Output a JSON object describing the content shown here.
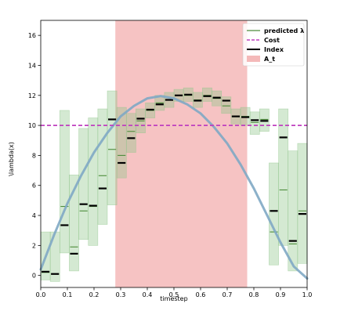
{
  "chart_data": {
    "type": "line",
    "xlabel": "timestep",
    "ylabel": "\\lambda(x)",
    "xlim": [
      0.0,
      1.0
    ],
    "ylim": [
      -0.8,
      17.0
    ],
    "xticks": [
      0.0,
      0.1,
      0.2,
      0.3,
      0.4,
      0.5,
      0.6,
      0.7,
      0.8,
      0.9,
      1.0
    ],
    "xtick_labels": [
      "0.0",
      "0.1",
      "0.2",
      "0.3",
      "0.4",
      "0.5",
      "0.6",
      "0.7",
      "0.8",
      "0.9",
      "1.0"
    ],
    "yticks": [
      0,
      2,
      4,
      6,
      8,
      10,
      12,
      14,
      16
    ],
    "ytick_labels": [
      "0",
      "2",
      "4",
      "6",
      "8",
      "10",
      "12",
      "14",
      "16"
    ],
    "grid": false,
    "legend_position": "top-right",
    "legend": [
      {
        "label": "predicted λ",
        "style": "line",
        "color": "#4c8c3a"
      },
      {
        "label": "Cost",
        "style": "dashed",
        "color": "#bf40bf"
      },
      {
        "label": "Index",
        "style": "thick-line",
        "color": "#000000"
      },
      {
        "label": "A_t",
        "style": "patch",
        "color": "#f4b9b9"
      }
    ],
    "cost": 10.0,
    "shaded_region": {
      "x_start": 0.28,
      "x_end": 0.775
    },
    "curve": {
      "description": "true lambda",
      "color": "#7fa8c4",
      "x": [
        0.0,
        0.05,
        0.1,
        0.15,
        0.2,
        0.25,
        0.3,
        0.35,
        0.4,
        0.45,
        0.5,
        0.55,
        0.6,
        0.65,
        0.7,
        0.75,
        0.8,
        0.85,
        0.9,
        0.95,
        1.0
      ],
      "y": [
        0.4,
        2.7,
        4.8,
        6.6,
        8.2,
        9.5,
        10.6,
        11.3,
        11.8,
        11.95,
        11.8,
        11.4,
        10.8,
        9.9,
        8.8,
        7.4,
        5.8,
        4.0,
        2.2,
        0.6,
        -0.2
      ]
    },
    "bins": [
      {
        "x0": 0.0,
        "x1": 0.0357,
        "predicted": 0.2,
        "index": 0.25,
        "low": -0.3,
        "high": 2.9
      },
      {
        "x0": 0.0357,
        "x1": 0.0714,
        "predicted": 0.1,
        "index": 0.1,
        "low": -0.4,
        "high": 2.9
      },
      {
        "x0": 0.0714,
        "x1": 0.1071,
        "predicted": 4.6,
        "index": 3.35,
        "low": 1.5,
        "high": 11.0
      },
      {
        "x0": 0.1071,
        "x1": 0.1429,
        "predicted": 1.9,
        "index": 1.45,
        "low": 0.3,
        "high": 6.7
      },
      {
        "x0": 0.1429,
        "x1": 0.1786,
        "predicted": 4.3,
        "index": 4.75,
        "low": 2.4,
        "high": 9.8
      },
      {
        "x0": 0.1786,
        "x1": 0.2143,
        "predicted": 4.6,
        "index": 4.65,
        "low": 2.0,
        "high": 10.5
      },
      {
        "x0": 0.2143,
        "x1": 0.25,
        "predicted": 6.65,
        "index": 5.8,
        "low": 3.4,
        "high": 11.1
      },
      {
        "x0": 0.25,
        "x1": 0.2857,
        "predicted": 8.4,
        "index": 10.4,
        "low": 4.7,
        "high": 12.3
      },
      {
        "x0": 0.2857,
        "x1": 0.3214,
        "predicted": 8.0,
        "index": 7.5,
        "low": 6.5,
        "high": 11.2
      },
      {
        "x0": 0.3214,
        "x1": 0.3571,
        "predicted": 9.6,
        "index": 9.15,
        "low": 8.2,
        "high": 10.8
      },
      {
        "x0": 0.3571,
        "x1": 0.3929,
        "predicted": 10.3,
        "index": 10.45,
        "low": 9.5,
        "high": 11.1
      },
      {
        "x0": 0.3929,
        "x1": 0.4286,
        "predicted": 11.0,
        "index": 11.05,
        "low": 10.5,
        "high": 11.5
      },
      {
        "x0": 0.4286,
        "x1": 0.4643,
        "predicted": 11.5,
        "index": 11.4,
        "low": 11.0,
        "high": 12.0
      },
      {
        "x0": 0.4643,
        "x1": 0.5,
        "predicted": 11.7,
        "index": 11.7,
        "low": 11.2,
        "high": 12.2
      },
      {
        "x0": 0.5,
        "x1": 0.5357,
        "predicted": 12.0,
        "index": 12.0,
        "low": 11.6,
        "high": 12.4
      },
      {
        "x0": 0.5357,
        "x1": 0.5714,
        "predicted": 12.0,
        "index": 12.05,
        "low": 11.6,
        "high": 12.5
      },
      {
        "x0": 0.5714,
        "x1": 0.6071,
        "predicted": 11.7,
        "index": 11.65,
        "low": 11.2,
        "high": 12.2
      },
      {
        "x0": 0.6071,
        "x1": 0.6429,
        "predicted": 12.0,
        "index": 11.95,
        "low": 11.6,
        "high": 12.5
      },
      {
        "x0": 0.6429,
        "x1": 0.6786,
        "predicted": 11.8,
        "index": 11.85,
        "low": 11.3,
        "high": 12.3
      },
      {
        "x0": 0.6786,
        "x1": 0.7143,
        "predicted": 11.3,
        "index": 11.65,
        "low": 10.8,
        "high": 11.9
      },
      {
        "x0": 0.7143,
        "x1": 0.75,
        "predicted": 10.6,
        "index": 10.6,
        "low": 10.1,
        "high": 11.1
      },
      {
        "x0": 0.75,
        "x1": 0.7857,
        "predicted": 10.6,
        "index": 10.55,
        "low": 10.0,
        "high": 11.2
      },
      {
        "x0": 0.7857,
        "x1": 0.8214,
        "predicted": 10.2,
        "index": 10.35,
        "low": 9.4,
        "high": 10.9
      },
      {
        "x0": 0.8214,
        "x1": 0.8571,
        "predicted": 10.4,
        "index": 10.3,
        "low": 9.6,
        "high": 11.1
      },
      {
        "x0": 0.8571,
        "x1": 0.8929,
        "predicted": 2.9,
        "index": 4.3,
        "low": 0.7,
        "high": 7.5
      },
      {
        "x0": 0.8929,
        "x1": 0.9286,
        "predicted": 5.7,
        "index": 9.2,
        "low": 2.0,
        "high": 11.1
      },
      {
        "x0": 0.9286,
        "x1": 0.9643,
        "predicted": 2.1,
        "index": 2.3,
        "low": 0.3,
        "high": 8.3
      },
      {
        "x0": 0.9643,
        "x1": 1.0,
        "predicted": 4.3,
        "index": 4.1,
        "low": 0.8,
        "high": 8.8
      }
    ]
  }
}
